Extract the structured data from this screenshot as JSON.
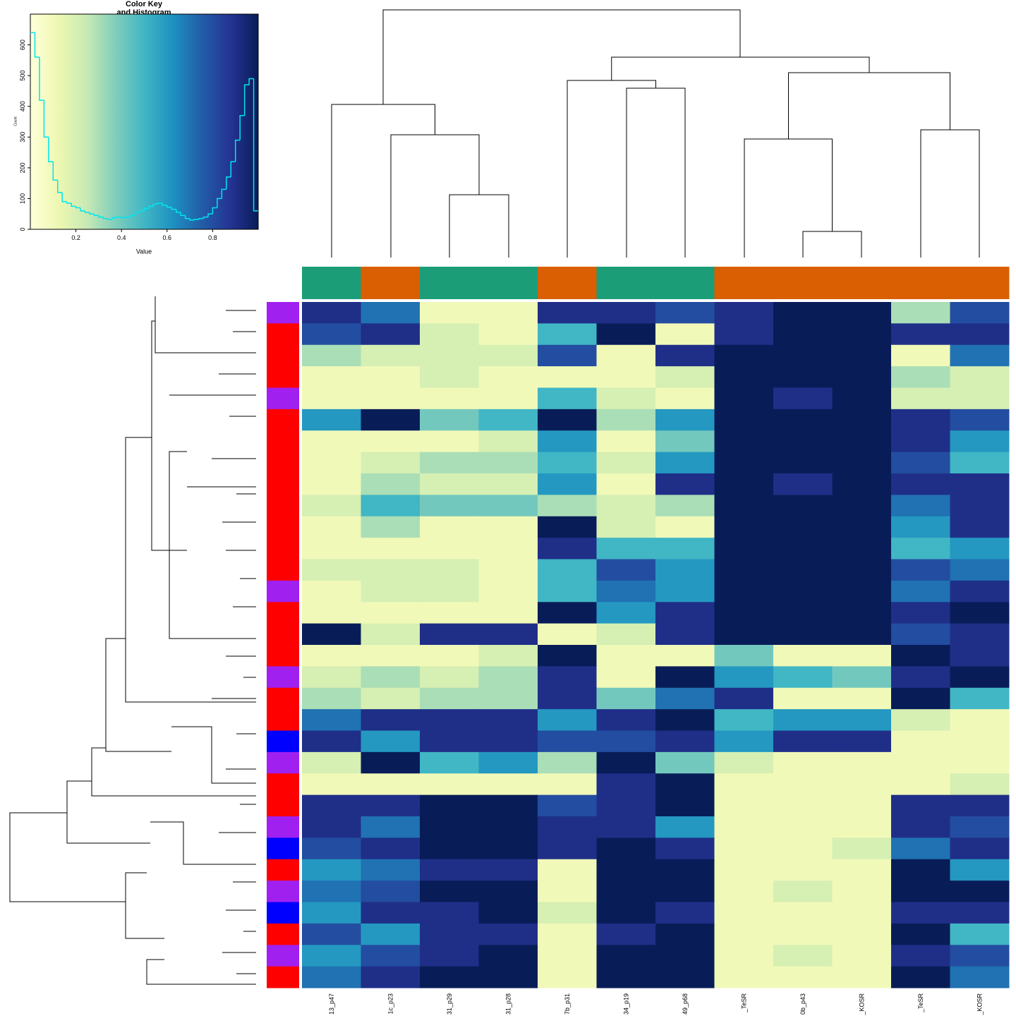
{
  "chart_data": [
    {
      "type": "histogram",
      "title": "Color Key",
      "subtitle": "and Histogram",
      "x_label": "Value",
      "y_label": "Count",
      "bins": [
        0,
        0.02,
        0.04,
        0.06,
        0.08,
        0.1,
        0.12,
        0.14,
        0.16,
        0.18,
        0.2,
        0.22,
        0.24,
        0.26,
        0.28,
        0.3,
        0.32,
        0.34,
        0.36,
        0.38,
        0.4,
        0.42,
        0.44,
        0.46,
        0.48,
        0.5,
        0.52,
        0.54,
        0.56,
        0.58,
        0.6,
        0.62,
        0.64,
        0.66,
        0.68,
        0.7,
        0.72,
        0.74,
        0.76,
        0.78,
        0.8,
        0.82,
        0.84,
        0.86,
        0.88,
        0.9,
        0.92,
        0.94,
        0.96,
        0.98,
        1
      ],
      "values": [
        640,
        560,
        420,
        300,
        220,
        160,
        120,
        90,
        85,
        75,
        70,
        60,
        55,
        50,
        45,
        40,
        35,
        32,
        38,
        40,
        38,
        40,
        45,
        55,
        60,
        68,
        75,
        82,
        85,
        78,
        72,
        65,
        55,
        45,
        35,
        30,
        32,
        35,
        40,
        50,
        70,
        100,
        130,
        170,
        220,
        290,
        370,
        470,
        490,
        60
      ],
      "color": "#00e5ee",
      "colors": [
        "#ffffd9",
        "#edf8b1",
        "#c7e9b4",
        "#7fcdbb",
        "#41b6c4",
        "#1d91c0",
        "#225ea8",
        "#253494",
        "#081d58"
      ],
      "xlim": [
        0,
        1
      ],
      "ylim": [
        0,
        700
      ],
      "xticks": [
        0.2,
        0.4,
        0.6,
        0.8
      ],
      "yticks": [
        0,
        100,
        200,
        300,
        400,
        500,
        600
      ]
    },
    {
      "type": "heatmap",
      "columns": [
        "13_p47",
        "1c_p23",
        "31_p29",
        "31_p28",
        "7b_p31",
        "34_p19",
        "49_p68",
        "_TeSR",
        "0b_p43",
        "_KOSR",
        "_TeSR",
        "_KOSR"
      ],
      "column_colors": [
        "#1b9e77",
        "#d95f02",
        "#1b9e77",
        "#1b9e77",
        "#d95f02",
        "#1b9e77",
        "#1b9e77",
        "#d95f02",
        "#d95f02",
        "#d95f02",
        "#d95f02",
        "#d95f02"
      ],
      "row_colors": [
        "#a020f0",
        "#ff0000",
        "#ff0000",
        "#ff0000",
        "#a020f0",
        "#ff0000",
        "#ff0000",
        "#ff0000",
        "#ff0000",
        "#ff0000",
        "#ff0000",
        "#ff0000",
        "#ff0000",
        "#a020f0",
        "#ff0000",
        "#ff0000",
        "#ff0000",
        "#a020f0",
        "#ff0000",
        "#ff0000",
        "#0000ff",
        "#a020f0",
        "#ff0000",
        "#ff0000",
        "#a020f0",
        "#0000ff",
        "#ff0000",
        "#a020f0",
        "#0000ff",
        "#ff0000",
        "#a020f0",
        "#ff0000"
      ],
      "colors": [
        "#ffffd9",
        "#edf8b1",
        "#c7e9b4",
        "#7fcdbb",
        "#41b6c4",
        "#1d91c0",
        "#225ea8",
        "#253494",
        "#081d58"
      ],
      "values": [
        [
          0.9,
          0.7,
          0.1,
          0.1,
          0.9,
          0.9,
          0.8,
          0.9,
          1,
          1,
          0.3,
          0.8
        ],
        [
          0.8,
          0.9,
          0.2,
          0.1,
          0.5,
          1,
          0.1,
          0.9,
          1,
          1,
          0.9,
          0.9
        ],
        [
          0.3,
          0.2,
          0.2,
          0.2,
          0.8,
          0.1,
          0.9,
          1,
          1,
          1,
          0.1,
          0.7
        ],
        [
          0.1,
          0.1,
          0.2,
          0.1,
          0.1,
          0.1,
          0.2,
          1,
          1,
          1,
          0.3,
          0.2
        ],
        [
          0.1,
          0.1,
          0.1,
          0.1,
          0.5,
          0.2,
          0.1,
          1,
          0.9,
          1,
          0.2,
          0.2
        ],
        [
          0.6,
          1,
          0.4,
          0.5,
          1,
          0.3,
          0.6,
          1,
          1,
          1,
          0.9,
          0.8
        ],
        [
          0.1,
          0.1,
          0.1,
          0.2,
          0.6,
          0.1,
          0.4,
          1,
          1,
          1,
          0.9,
          0.6
        ],
        [
          0.1,
          0.2,
          0.3,
          0.3,
          0.5,
          0.2,
          0.6,
          1,
          1,
          1,
          0.8,
          0.5
        ],
        [
          0.1,
          0.3,
          0.2,
          0.2,
          0.6,
          0.1,
          0.9,
          1,
          0.9,
          1,
          0.9,
          0.9
        ],
        [
          0.2,
          0.5,
          0.4,
          0.4,
          0.3,
          0.2,
          0.3,
          1,
          1,
          1,
          0.7,
          0.9
        ],
        [
          0.1,
          0.3,
          0.1,
          0.1,
          1,
          0.2,
          0.1,
          1,
          1,
          1,
          0.6,
          0.9
        ],
        [
          0.1,
          0.1,
          0.1,
          0.1,
          0.9,
          0.5,
          0.5,
          1,
          1,
          1,
          0.5,
          0.6
        ],
        [
          0.2,
          0.2,
          0.2,
          0.1,
          0.5,
          0.8,
          0.6,
          1,
          1,
          1,
          0.8,
          0.7
        ],
        [
          0.1,
          0.2,
          0.2,
          0.1,
          0.5,
          0.7,
          0.6,
          1,
          1,
          1,
          0.7,
          0.9
        ],
        [
          0.1,
          0.1,
          0.1,
          0.1,
          1,
          0.6,
          0.9,
          1,
          1,
          1,
          0.9,
          1
        ],
        [
          1,
          0.2,
          0.9,
          0.9,
          0.1,
          0.2,
          0.9,
          1,
          1,
          1,
          0.8,
          0.9
        ],
        [
          0.1,
          0.1,
          0.1,
          0.2,
          1,
          0.1,
          0.1,
          0.4,
          0.1,
          0.1,
          1,
          0.9
        ],
        [
          0.2,
          0.3,
          0.2,
          0.3,
          0.9,
          0.1,
          1,
          0.6,
          0.5,
          0.4,
          0.9,
          1
        ],
        [
          0.3,
          0.2,
          0.3,
          0.3,
          0.9,
          0.4,
          0.7,
          0.9,
          0.1,
          0.1,
          1,
          0.5
        ],
        [
          0.7,
          0.9,
          0.9,
          0.9,
          0.6,
          0.9,
          1,
          0.5,
          0.6,
          0.6,
          0.2,
          0.1
        ],
        [
          0.9,
          0.6,
          0.9,
          0.9,
          0.8,
          0.8,
          0.9,
          0.6,
          0.9,
          0.9,
          0.1,
          0.1
        ],
        [
          0.2,
          1,
          0.5,
          0.6,
          0.3,
          1,
          0.4,
          0.2,
          0.1,
          0.1,
          0.1,
          0.1
        ],
        [
          0.1,
          0.1,
          0.1,
          0.1,
          0.1,
          0.9,
          1,
          0.1,
          0.1,
          0.1,
          0.1,
          0.2
        ],
        [
          0.9,
          0.9,
          1,
          1,
          0.8,
          0.9,
          1,
          0.1,
          0.1,
          0.1,
          0.9,
          0.9
        ],
        [
          0.9,
          0.7,
          1,
          1,
          0.9,
          0.9,
          0.6,
          0.1,
          0.1,
          0.1,
          0.9,
          0.8
        ],
        [
          0.8,
          0.9,
          1,
          1,
          0.9,
          1,
          0.9,
          0.1,
          0.1,
          0.2,
          0.7,
          0.9
        ],
        [
          0.6,
          0.7,
          0.9,
          0.9,
          0.1,
          1,
          1,
          0.1,
          0.1,
          0.1,
          1,
          0.6
        ],
        [
          0.7,
          0.8,
          1,
          1,
          0.1,
          1,
          1,
          0.1,
          0.2,
          0.1,
          1,
          1
        ],
        [
          0.6,
          0.9,
          0.9,
          1,
          0.2,
          1,
          0.9,
          0.1,
          0.1,
          0.1,
          0.9,
          0.9
        ],
        [
          0.8,
          0.6,
          0.9,
          0.9,
          0.1,
          0.9,
          1,
          0.1,
          0.1,
          0.1,
          1,
          0.5
        ],
        [
          0.6,
          0.8,
          0.9,
          1,
          0.1,
          1,
          1,
          0.1,
          0.2,
          0.1,
          0.9,
          0.8
        ],
        [
          0.7,
          0.9,
          1,
          1,
          0.1,
          1,
          1,
          0.1,
          0.1,
          0.1,
          1,
          0.7
        ]
      ]
    }
  ]
}
